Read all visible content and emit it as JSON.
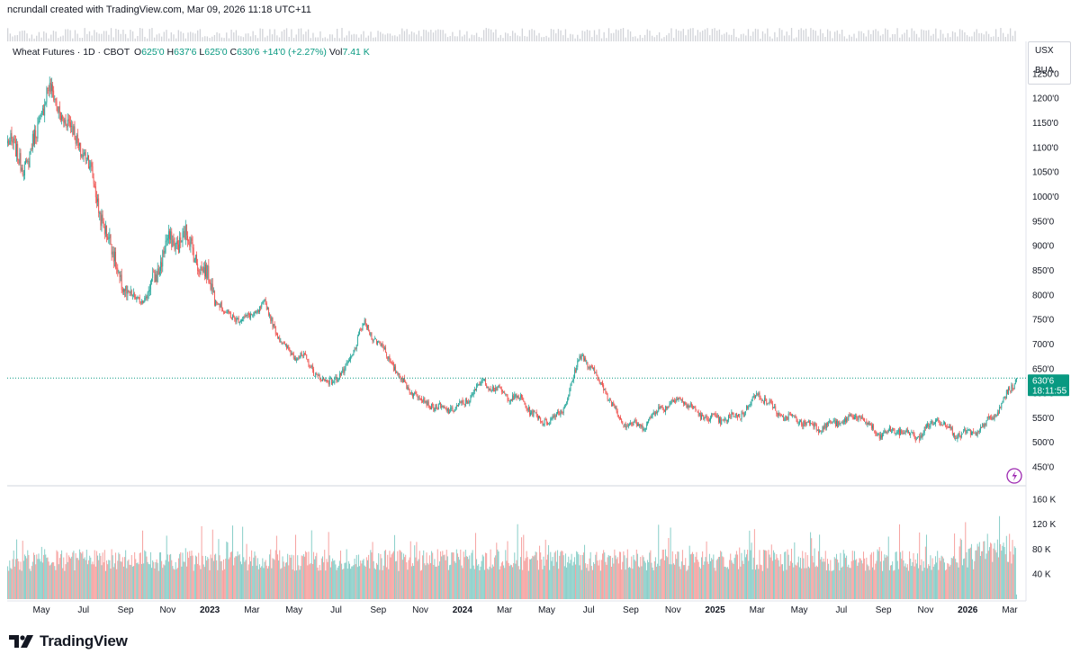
{
  "header": {
    "attribution": "ncrundall created with TradingView.com, Mar 09, 2026 11:18 UTC+11"
  },
  "legend": {
    "symbol": "Wheat Futures · 1D · CBOT",
    "open_label": "O",
    "open": "625'0",
    "high_label": "H",
    "high": "637'6",
    "low_label": "L",
    "low": "625'0",
    "close_label": "C",
    "close": "630'6",
    "change": "+14'0 (+2.27%)",
    "vol_label": "Vol",
    "volume": "7.41 K"
  },
  "units": {
    "currency": "USX",
    "unit": "BUA"
  },
  "price_tag": {
    "price": "630'6",
    "countdown": "18:11:55"
  },
  "footer": {
    "brand": "TradingView"
  },
  "colors": {
    "up": "#26a69a",
    "down": "#ef5350",
    "accent": "#089981",
    "grid": "#d1d4dc"
  },
  "chart_data": {
    "type": "candlestick",
    "title": "Wheat Futures · 1D · CBOT",
    "x_ticks": [
      "May",
      "Jul",
      "Sep",
      "Nov",
      "2023",
      "Mar",
      "May",
      "Jul",
      "Sep",
      "Nov",
      "2024",
      "Mar",
      "May",
      "Jul",
      "Sep",
      "Nov",
      "2025",
      "Mar",
      "May",
      "Jul",
      "Sep",
      "Nov",
      "2026",
      "Mar"
    ],
    "price_ticks": [
      "450'0",
      "500'0",
      "550'0",
      "600'0",
      "650'0",
      "700'0",
      "750'0",
      "800'0",
      "850'0",
      "900'0",
      "950'0",
      "1000'0",
      "1050'0",
      "1100'0",
      "1150'0",
      "1200'0",
      "1250'0"
    ],
    "price_tick_values": [
      450,
      500,
      550,
      600,
      650,
      700,
      750,
      800,
      850,
      900,
      950,
      1000,
      1050,
      1100,
      1150,
      1200,
      1250
    ],
    "volume_ticks": [
      "40 K",
      "80 K",
      "120 K",
      "160 K"
    ],
    "volume_tick_values": [
      40,
      80,
      120,
      160
    ],
    "last_price": 630.75,
    "price_path": [
      {
        "month": "2022-03",
        "price": 1110
      },
      {
        "month": "2022-04",
        "price": 1060
      },
      {
        "month": "2022-05",
        "price": 1220
      },
      {
        "month": "2022-05b",
        "price": 1150
      },
      {
        "month": "2022-06",
        "price": 1080
      },
      {
        "month": "2022-06b",
        "price": 920
      },
      {
        "month": "2022-07",
        "price": 800
      },
      {
        "month": "2022-08",
        "price": 790
      },
      {
        "month": "2022-09",
        "price": 900
      },
      {
        "month": "2022-10",
        "price": 920
      },
      {
        "month": "2022-11",
        "price": 840
      },
      {
        "month": "2022-12",
        "price": 760
      },
      {
        "month": "2023-01",
        "price": 750
      },
      {
        "month": "2023-02",
        "price": 780
      },
      {
        "month": "2023-03",
        "price": 690
      },
      {
        "month": "2023-04",
        "price": 670
      },
      {
        "month": "2023-05",
        "price": 620
      },
      {
        "month": "2023-06",
        "price": 640
      },
      {
        "month": "2023-07",
        "price": 740
      },
      {
        "month": "2023-07b",
        "price": 690
      },
      {
        "month": "2023-08",
        "price": 620
      },
      {
        "month": "2023-09",
        "price": 585
      },
      {
        "month": "2023-10",
        "price": 565
      },
      {
        "month": "2023-11",
        "price": 575
      },
      {
        "month": "2023-12",
        "price": 625
      },
      {
        "month": "2024-01",
        "price": 600
      },
      {
        "month": "2024-02",
        "price": 585
      },
      {
        "month": "2024-03",
        "price": 540
      },
      {
        "month": "2024-04",
        "price": 560
      },
      {
        "month": "2024-05",
        "price": 680
      },
      {
        "month": "2024-06",
        "price": 620
      },
      {
        "month": "2024-07",
        "price": 545
      },
      {
        "month": "2024-08",
        "price": 530
      },
      {
        "month": "2024-09",
        "price": 570
      },
      {
        "month": "2024-10",
        "price": 590
      },
      {
        "month": "2024-11",
        "price": 555
      },
      {
        "month": "2024-12",
        "price": 545
      },
      {
        "month": "2025-01",
        "price": 555
      },
      {
        "month": "2025-02",
        "price": 600
      },
      {
        "month": "2025-03",
        "price": 555
      },
      {
        "month": "2025-04",
        "price": 545
      },
      {
        "month": "2025-05",
        "price": 530
      },
      {
        "month": "2025-06",
        "price": 540
      },
      {
        "month": "2025-07",
        "price": 555
      },
      {
        "month": "2025-08",
        "price": 515
      },
      {
        "month": "2025-09",
        "price": 525
      },
      {
        "month": "2025-10",
        "price": 510
      },
      {
        "month": "2025-11",
        "price": 550
      },
      {
        "month": "2025-12",
        "price": 515
      },
      {
        "month": "2026-01",
        "price": 520
      },
      {
        "month": "2026-02",
        "price": 560
      },
      {
        "month": "2026-03",
        "price": 630
      }
    ],
    "volume_ylim": [
      0,
      170
    ],
    "price_ylim": [
      430,
      1290
    ]
  }
}
